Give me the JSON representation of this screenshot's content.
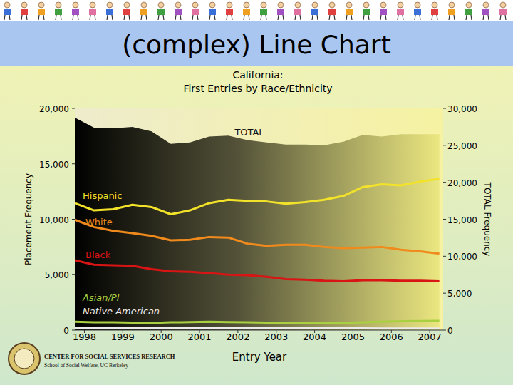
{
  "slide": {
    "heading": "(complex) Line Chart",
    "footer": [
      "CENTER FOR SOCIAL SERVICES RESEARCH",
      "School of Social Welfare, UC Berkeley"
    ]
  },
  "chart_data": {
    "type": "line",
    "title": "California:\nFirst Entries by Race/Ethnicity",
    "x_label": "Entry Year",
    "y_label": "Placement Frequency",
    "y2_label": "TOTAL Frequency",
    "x": [
      1997.75,
      1998.25,
      1998.75,
      1999.25,
      1999.75,
      2000.25,
      2000.75,
      2001.25,
      2001.75,
      2002.25,
      2002.75,
      2003.25,
      2003.75,
      2004.25,
      2004.75,
      2005.25,
      2005.75,
      2006.25,
      2006.75,
      2007.25
    ],
    "xlim": [
      1997.75,
      2007.35
    ],
    "xticks": [
      1998,
      1999,
      2000,
      2001,
      2002,
      2003,
      2004,
      2005,
      2006,
      2007
    ],
    "ylim": [
      0,
      20000
    ],
    "yticks": [
      0,
      {
        "value": 5000,
        "label": "5,000"
      },
      {
        "value": 10000,
        "label": "10,000"
      },
      {
        "value": 15000,
        "label": "15,000"
      },
      {
        "value": 20000,
        "label": "20,000"
      }
    ],
    "y2lim": [
      0,
      30000
    ],
    "y2ticks": [
      0,
      {
        "value": 5000,
        "label": "5,000"
      },
      {
        "value": 10000,
        "label": "10,000"
      },
      {
        "value": 15000,
        "label": "15,000"
      },
      {
        "value": 20000,
        "label": "20,000"
      },
      {
        "value": 25000,
        "label": "25,000"
      },
      {
        "value": 30000,
        "label": "30,000"
      }
    ],
    "grid": false,
    "series": [
      {
        "name": "TOTAL",
        "type": "area",
        "axis": "y2",
        "color": "#000000",
        "values": [
          28750,
          27400,
          27300,
          27500,
          26900,
          25200,
          25400,
          26200,
          26300,
          25700,
          25400,
          25100,
          25100,
          25000,
          25500,
          26400,
          26200,
          26500,
          26500,
          26500
        ]
      },
      {
        "name": "Hispanic",
        "color": "#f2e22a",
        "values": [
          11450,
          10800,
          10900,
          11300,
          11100,
          10450,
          10800,
          11450,
          11750,
          11650,
          11600,
          11400,
          11550,
          11750,
          12100,
          12900,
          13150,
          13050,
          13400,
          13650
        ]
      },
      {
        "name": "White",
        "color": "#f08a1c",
        "values": [
          9950,
          9300,
          8950,
          8750,
          8500,
          8100,
          8150,
          8400,
          8350,
          7800,
          7600,
          7700,
          7700,
          7500,
          7400,
          7450,
          7500,
          7250,
          7100,
          6900
        ]
      },
      {
        "name": "Black",
        "color": "#d81414",
        "values": [
          6300,
          5900,
          5850,
          5800,
          5500,
          5300,
          5250,
          5150,
          5000,
          4950,
          4800,
          4600,
          4550,
          4450,
          4400,
          4500,
          4500,
          4450,
          4450,
          4400
        ]
      },
      {
        "name": "Asian/PI",
        "color": "#a8d040",
        "values": [
          750,
          700,
          700,
          680,
          650,
          700,
          720,
          750,
          720,
          700,
          680,
          650,
          650,
          620,
          650,
          700,
          750,
          800,
          820,
          830
        ]
      },
      {
        "name": "Native American",
        "color": "#ececec",
        "values": [
          220,
          210,
          200,
          200,
          190,
          190,
          180,
          180,
          180,
          170,
          170,
          170,
          160,
          160,
          160,
          160,
          150,
          150,
          150,
          150
        ]
      }
    ]
  }
}
